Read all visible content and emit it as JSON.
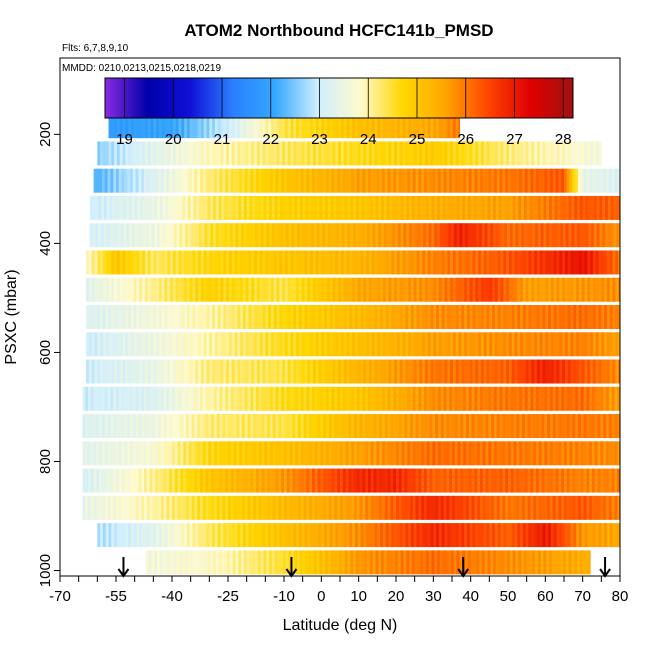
{
  "chart_data": {
    "type": "heatmap",
    "title": "ATOM2 Northbound HCFC141b_PMSD",
    "notes": {
      "flights": "Flts: 6,7,8,9,10",
      "dates": "MMDD: 0210,0213,0215,0218,0219"
    },
    "xlabel": "Latitude (deg N)",
    "ylabel": "PSXC (mbar)",
    "xlim": [
      -70,
      80
    ],
    "ylim": [
      1010,
      60
    ],
    "x_ticks": [
      -70,
      -55,
      -40,
      -25,
      -10,
      0,
      10,
      20,
      30,
      40,
      50,
      60,
      70,
      80
    ],
    "x_tick_labels": [
      "-70",
      "-55",
      "-40",
      "-25",
      "-10",
      "0",
      "10",
      "20",
      "30",
      "40",
      "50",
      "60",
      "70",
      "80"
    ],
    "x_minor_ticks": [
      -65,
      -60,
      -50,
      -45,
      -35,
      -30,
      -20,
      -15,
      -5,
      5,
      15,
      25,
      35,
      45,
      55,
      65,
      75
    ],
    "y_ticks": [
      200,
      400,
      600,
      800,
      1000
    ],
    "y_tick_labels": [
      "200",
      "400",
      "600",
      "800",
      "1000"
    ],
    "colorbar": {
      "min": 18.6,
      "max": 28.2,
      "ticks": [
        19,
        20,
        21,
        22,
        23,
        24,
        25,
        26,
        27,
        28
      ],
      "tick_labels": [
        "19",
        "20",
        "21",
        "22",
        "23",
        "24",
        "25",
        "26",
        "27",
        "28"
      ],
      "colors": [
        "#8a2be2",
        "#0000aa",
        "#1010d8",
        "#2a7fff",
        "#35a8ff",
        "#cfeeff",
        "#fffacd",
        "#ffd700",
        "#ffa500",
        "#ff4500",
        "#e00000",
        "#a01010"
      ]
    },
    "arrows_latitude": [
      -53,
      -8,
      38,
      76
    ],
    "rows": [
      {
        "p": 185,
        "x0": -57,
        "x1": 37,
        "stops": [
          [
            -57,
            21.8
          ],
          [
            -40,
            22.0
          ],
          [
            -25,
            23.0
          ],
          [
            -10,
            24.4
          ],
          [
            10,
            25.1
          ],
          [
            30,
            25.5
          ],
          [
            37,
            26.0
          ]
        ]
      },
      {
        "p": 235,
        "x0": -60,
        "x1": 75,
        "stops": [
          [
            -60,
            22.6
          ],
          [
            -45,
            23.3
          ],
          [
            -30,
            23.9
          ],
          [
            -10,
            24.3
          ],
          [
            10,
            24.6
          ],
          [
            30,
            24.9
          ],
          [
            50,
            24.2
          ],
          [
            75,
            23.6
          ]
        ]
      },
      {
        "p": 285,
        "x0": -61,
        "x1": 80,
        "stops": [
          [
            -61,
            22.2
          ],
          [
            -45,
            23.2
          ],
          [
            -30,
            24.2
          ],
          [
            -10,
            25.0
          ],
          [
            10,
            25.6
          ],
          [
            30,
            25.8
          ],
          [
            50,
            26.0
          ],
          [
            65,
            26.3
          ],
          [
            70,
            23.4
          ],
          [
            80,
            23.2
          ]
        ]
      },
      {
        "p": 335,
        "x0": -62,
        "x1": 80,
        "stops": [
          [
            -62,
            23.0
          ],
          [
            -45,
            23.4
          ],
          [
            -30,
            24.3
          ],
          [
            -10,
            24.8
          ],
          [
            10,
            25.0
          ],
          [
            30,
            25.4
          ],
          [
            50,
            25.6
          ],
          [
            70,
            26.3
          ],
          [
            80,
            26.2
          ]
        ]
      },
      {
        "p": 385,
        "x0": -62,
        "x1": 80,
        "stops": [
          [
            -62,
            23.1
          ],
          [
            -45,
            23.5
          ],
          [
            -30,
            24.5
          ],
          [
            -10,
            25.1
          ],
          [
            10,
            25.4
          ],
          [
            30,
            26.1
          ],
          [
            37,
            26.9
          ],
          [
            50,
            26.1
          ],
          [
            70,
            26.3
          ],
          [
            80,
            25.7
          ]
        ]
      },
      {
        "p": 435,
        "x0": -63,
        "x1": 80,
        "stops": [
          [
            -63,
            23.8
          ],
          [
            -55,
            25.0
          ],
          [
            -45,
            24.3
          ],
          [
            -30,
            24.7
          ],
          [
            -10,
            25.0
          ],
          [
            10,
            25.3
          ],
          [
            30,
            25.9
          ],
          [
            50,
            26.3
          ],
          [
            70,
            27.1
          ],
          [
            80,
            26.0
          ]
        ]
      },
      {
        "p": 485,
        "x0": -63,
        "x1": 80,
        "stops": [
          [
            -63,
            23.3
          ],
          [
            -45,
            24.1
          ],
          [
            -30,
            24.8
          ],
          [
            -10,
            24.4
          ],
          [
            10,
            25.5
          ],
          [
            30,
            25.8
          ],
          [
            45,
            26.6
          ],
          [
            55,
            25.6
          ],
          [
            70,
            25.7
          ],
          [
            80,
            25.8
          ]
        ]
      },
      {
        "p": 535,
        "x0": -63,
        "x1": 80,
        "stops": [
          [
            -63,
            23.2
          ],
          [
            -45,
            23.6
          ],
          [
            -30,
            24.0
          ],
          [
            -10,
            24.7
          ],
          [
            10,
            25.2
          ],
          [
            30,
            25.8
          ],
          [
            50,
            25.9
          ],
          [
            70,
            26.1
          ],
          [
            80,
            25.9
          ]
        ]
      },
      {
        "p": 585,
        "x0": -63,
        "x1": 80,
        "stops": [
          [
            -63,
            23.0
          ],
          [
            -45,
            23.5
          ],
          [
            -30,
            24.0
          ],
          [
            -10,
            24.6
          ],
          [
            10,
            25.1
          ],
          [
            30,
            25.6
          ],
          [
            50,
            25.8
          ],
          [
            70,
            25.9
          ],
          [
            80,
            25.6
          ]
        ]
      },
      {
        "p": 635,
        "x0": -63,
        "x1": 80,
        "stops": [
          [
            -63,
            23.0
          ],
          [
            -45,
            23.4
          ],
          [
            -30,
            24.2
          ],
          [
            -10,
            24.4
          ],
          [
            10,
            25.3
          ],
          [
            30,
            26.0
          ],
          [
            50,
            26.2
          ],
          [
            60,
            26.9
          ],
          [
            70,
            26.3
          ],
          [
            80,
            25.8
          ]
        ]
      },
      {
        "p": 685,
        "x0": -64,
        "x1": 80,
        "stops": [
          [
            -64,
            23.0
          ],
          [
            -45,
            23.2
          ],
          [
            -30,
            24.0
          ],
          [
            -10,
            24.6
          ],
          [
            10,
            25.0
          ],
          [
            30,
            25.8
          ],
          [
            50,
            26.0
          ],
          [
            70,
            26.1
          ],
          [
            80,
            25.6
          ]
        ]
      },
      {
        "p": 735,
        "x0": -64,
        "x1": 80,
        "stops": [
          [
            -64,
            23.2
          ],
          [
            -45,
            23.5
          ],
          [
            -30,
            24.2
          ],
          [
            -10,
            24.4
          ],
          [
            10,
            25.3
          ],
          [
            30,
            25.8
          ],
          [
            50,
            25.9
          ],
          [
            70,
            26.0
          ],
          [
            80,
            25.9
          ]
        ]
      },
      {
        "p": 785,
        "x0": -64,
        "x1": 80,
        "stops": [
          [
            -64,
            23.3
          ],
          [
            -45,
            23.7
          ],
          [
            -30,
            24.7
          ],
          [
            -10,
            25.1
          ],
          [
            10,
            25.6
          ],
          [
            30,
            26.1
          ],
          [
            50,
            26.0
          ],
          [
            70,
            25.9
          ],
          [
            80,
            25.8
          ]
        ]
      },
      {
        "p": 835,
        "x0": -64,
        "x1": 80,
        "stops": [
          [
            -64,
            23.1
          ],
          [
            -45,
            24.1
          ],
          [
            -30,
            25.0
          ],
          [
            -10,
            25.7
          ],
          [
            10,
            26.8
          ],
          [
            20,
            26.8
          ],
          [
            30,
            26.2
          ],
          [
            50,
            26.2
          ],
          [
            70,
            25.9
          ],
          [
            80,
            25.9
          ]
        ]
      },
      {
        "p": 885,
        "x0": -64,
        "x1": 80,
        "stops": [
          [
            -64,
            23.4
          ],
          [
            -45,
            24.0
          ],
          [
            -30,
            24.6
          ],
          [
            -10,
            25.2
          ],
          [
            10,
            25.7
          ],
          [
            30,
            26.8
          ],
          [
            50,
            26.0
          ],
          [
            70,
            26.3
          ],
          [
            80,
            25.9
          ]
        ]
      },
      {
        "p": 935,
        "x0": -60,
        "x1": 80,
        "stops": [
          [
            -60,
            22.8
          ],
          [
            -45,
            23.3
          ],
          [
            -30,
            24.3
          ],
          [
            -10,
            25.1
          ],
          [
            10,
            25.8
          ],
          [
            30,
            26.8
          ],
          [
            50,
            26.2
          ],
          [
            60,
            27.0
          ],
          [
            70,
            25.7
          ],
          [
            80,
            25.5
          ]
        ]
      },
      {
        "p": 985,
        "x0": -47,
        "x1": 72,
        "stops": [
          [
            -47,
            23.6
          ],
          [
            -30,
            23.8
          ],
          [
            -10,
            24.5
          ],
          [
            10,
            25.7
          ],
          [
            30,
            26.1
          ],
          [
            50,
            25.8
          ],
          [
            72,
            25.4
          ]
        ]
      }
    ]
  }
}
